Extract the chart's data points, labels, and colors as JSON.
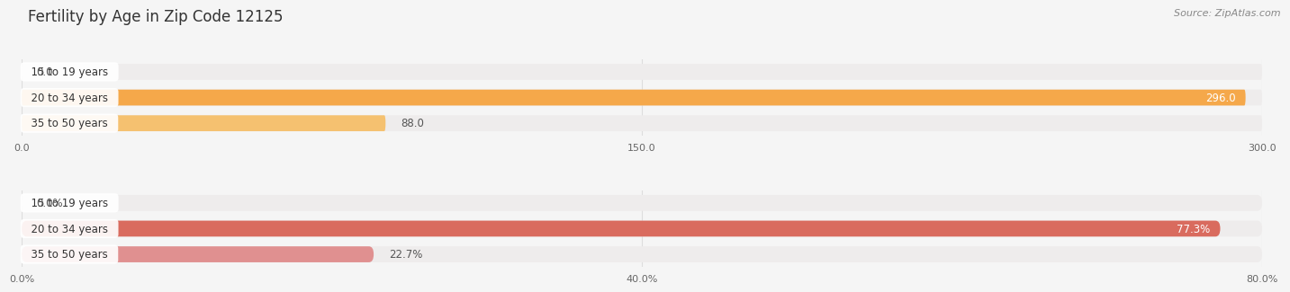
{
  "title": "Fertility by Age in Zip Code 12125",
  "source": "Source: ZipAtlas.com",
  "top_chart": {
    "categories": [
      "15 to 19 years",
      "20 to 34 years",
      "35 to 50 years"
    ],
    "values": [
      0.0,
      296.0,
      88.0
    ],
    "bar_colors": [
      "#f5c9a0",
      "#f5a84a",
      "#f5c170"
    ],
    "bar_bg_color": "#eeecec",
    "xlim": [
      0,
      300
    ],
    "xticks": [
      0.0,
      150.0,
      300.0
    ],
    "xtick_labels": [
      "0.0",
      "150.0",
      "300.0"
    ],
    "value_labels": [
      "0.0",
      "296.0",
      "88.0"
    ],
    "value_label_inside": [
      false,
      true,
      false
    ]
  },
  "bottom_chart": {
    "categories": [
      "15 to 19 years",
      "20 to 34 years",
      "35 to 50 years"
    ],
    "values": [
      0.0,
      77.3,
      22.7
    ],
    "bar_colors": [
      "#f0b8b0",
      "#d96b5e",
      "#e09090"
    ],
    "bar_bg_color": "#eeecec",
    "xlim": [
      0,
      80
    ],
    "xticks": [
      0.0,
      40.0,
      80.0
    ],
    "xtick_labels": [
      "0.0%",
      "40.0%",
      "80.0%"
    ],
    "value_labels": [
      "0.0%",
      "77.3%",
      "22.7%"
    ],
    "value_label_inside": [
      false,
      true,
      false
    ]
  },
  "bg_color": "#f5f5f5",
  "title_fontsize": 12,
  "source_fontsize": 8,
  "label_fontsize": 8.5,
  "value_fontsize": 8.5,
  "tick_fontsize": 8
}
